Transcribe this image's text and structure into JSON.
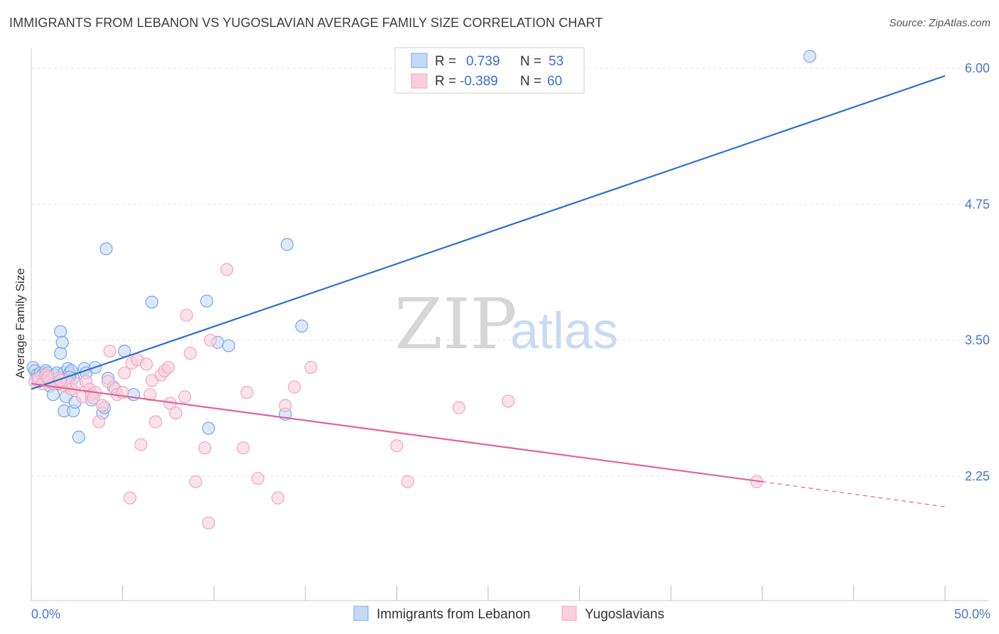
{
  "title": "IMMIGRANTS FROM LEBANON VS YUGOSLAVIAN AVERAGE FAMILY SIZE CORRELATION CHART",
  "source": "Source: ZipAtlas.com",
  "watermark": {
    "zip": "ZIP",
    "atlas": "atlas"
  },
  "chart_data": {
    "type": "scatter",
    "title": "IMMIGRANTS FROM LEBANON VS YUGOSLAVIAN AVERAGE FAMILY SIZE CORRELATION CHART",
    "xlabel": "",
    "ylabel": "Average Family Size",
    "xlim": [
      0,
      50
    ],
    "ylim": [
      1.0,
      6.2
    ],
    "x_tick_labels": [
      "0.0%",
      "50.0%"
    ],
    "y_ticks": [
      2.25,
      3.5,
      4.75,
      6.0
    ],
    "y_tick_labels": [
      "2.25",
      "3.50",
      "4.75",
      "6.00"
    ],
    "grid": true,
    "legend_placement": "top-center",
    "legend": [
      {
        "r_label": "R =",
        "r_value": "0.739",
        "n_label": "N =",
        "n_value": "53"
      },
      {
        "r_label": "R =",
        "r_value": "-0.389",
        "n_label": "N =",
        "n_value": "60"
      }
    ],
    "series": [
      {
        "name": "Immigrants from Lebanon",
        "color": "#7aa6e6",
        "line_color": "#2f6fd0",
        "trend": {
          "x": [
            0,
            50
          ],
          "y": [
            3.05,
            5.93
          ]
        },
        "points": [
          [
            0.1,
            3.25
          ],
          [
            0.2,
            3.22
          ],
          [
            0.3,
            3.18
          ],
          [
            0.3,
            3.15
          ],
          [
            0.4,
            3.12
          ],
          [
            0.5,
            3.2
          ],
          [
            0.6,
            3.18
          ],
          [
            0.7,
            3.15
          ],
          [
            0.8,
            3.22
          ],
          [
            0.9,
            3.2
          ],
          [
            1.0,
            3.12
          ],
          [
            1.0,
            3.08
          ],
          [
            1.1,
            3.15
          ],
          [
            1.2,
            3.0
          ],
          [
            1.3,
            3.18
          ],
          [
            1.4,
            3.2
          ],
          [
            1.5,
            3.12
          ],
          [
            1.6,
            3.58
          ],
          [
            1.6,
            3.38
          ],
          [
            1.7,
            3.48
          ],
          [
            1.8,
            3.2
          ],
          [
            1.8,
            2.85
          ],
          [
            1.9,
            2.98
          ],
          [
            2.0,
            3.24
          ],
          [
            2.1,
            3.2
          ],
          [
            2.2,
            3.22
          ],
          [
            2.2,
            3.05
          ],
          [
            2.3,
            3.15
          ],
          [
            2.3,
            2.85
          ],
          [
            2.4,
            2.93
          ],
          [
            2.6,
            2.61
          ],
          [
            2.9,
            3.24
          ],
          [
            3.0,
            3.2
          ],
          [
            3.3,
            2.95
          ],
          [
            3.5,
            3.25
          ],
          [
            3.9,
            2.83
          ],
          [
            4.0,
            2.88
          ],
          [
            4.1,
            4.34
          ],
          [
            4.2,
            3.15
          ],
          [
            4.5,
            3.07
          ],
          [
            5.1,
            3.4
          ],
          [
            5.6,
            3.0
          ],
          [
            6.6,
            3.85
          ],
          [
            9.6,
            3.86
          ],
          [
            10.2,
            3.48
          ],
          [
            10.8,
            3.45
          ],
          [
            9.7,
            2.69
          ],
          [
            14.0,
            4.38
          ],
          [
            14.8,
            3.63
          ],
          [
            13.9,
            2.82
          ],
          [
            42.6,
            6.11
          ],
          [
            2.1,
            3.16
          ],
          [
            1.5,
            3.1
          ]
        ]
      },
      {
        "name": "Yugoslavians",
        "color": "#f2a6c0",
        "line_color": "#e0649a",
        "trend": {
          "x": [
            0,
            40
          ],
          "y": [
            3.1,
            2.2
          ]
        },
        "trend_extension": {
          "x": [
            40,
            50
          ],
          "y": [
            2.2,
            1.97
          ]
        },
        "points": [
          [
            0.2,
            3.12
          ],
          [
            0.4,
            3.15
          ],
          [
            0.6,
            3.1
          ],
          [
            0.8,
            3.18
          ],
          [
            1.0,
            3.12
          ],
          [
            1.2,
            3.1
          ],
          [
            1.5,
            3.15
          ],
          [
            1.8,
            3.08
          ],
          [
            2.0,
            3.12
          ],
          [
            2.2,
            3.05
          ],
          [
            2.5,
            3.1
          ],
          [
            2.8,
            2.98
          ],
          [
            3.0,
            3.12
          ],
          [
            3.2,
            3.05
          ],
          [
            3.3,
            3.0
          ],
          [
            3.5,
            3.02
          ],
          [
            3.7,
            2.75
          ],
          [
            3.9,
            2.9
          ],
          [
            4.2,
            3.12
          ],
          [
            4.3,
            3.4
          ],
          [
            4.6,
            3.05
          ],
          [
            4.7,
            3.0
          ],
          [
            5.0,
            3.02
          ],
          [
            5.1,
            3.2
          ],
          [
            5.4,
            2.05
          ],
          [
            5.5,
            3.29
          ],
          [
            5.8,
            3.32
          ],
          [
            6.0,
            2.54
          ],
          [
            6.3,
            3.28
          ],
          [
            6.5,
            3.0
          ],
          [
            6.6,
            3.13
          ],
          [
            6.8,
            2.75
          ],
          [
            7.1,
            3.18
          ],
          [
            7.3,
            3.22
          ],
          [
            7.5,
            3.25
          ],
          [
            7.6,
            2.92
          ],
          [
            7.9,
            2.83
          ],
          [
            8.4,
            2.98
          ],
          [
            8.5,
            3.73
          ],
          [
            8.7,
            3.38
          ],
          [
            9.0,
            2.2
          ],
          [
            9.5,
            2.51
          ],
          [
            9.7,
            1.82
          ],
          [
            9.8,
            3.5
          ],
          [
            10.7,
            4.15
          ],
          [
            11.6,
            2.51
          ],
          [
            11.8,
            3.02
          ],
          [
            12.4,
            2.23
          ],
          [
            13.5,
            2.05
          ],
          [
            13.9,
            2.9
          ],
          [
            14.4,
            3.07
          ],
          [
            15.3,
            3.25
          ],
          [
            20.0,
            2.53
          ],
          [
            20.6,
            2.2
          ],
          [
            23.4,
            2.88
          ],
          [
            26.1,
            2.94
          ],
          [
            39.7,
            2.2
          ],
          [
            3.4,
            2.97
          ],
          [
            1.6,
            3.13
          ],
          [
            0.9,
            3.16
          ]
        ]
      }
    ]
  }
}
